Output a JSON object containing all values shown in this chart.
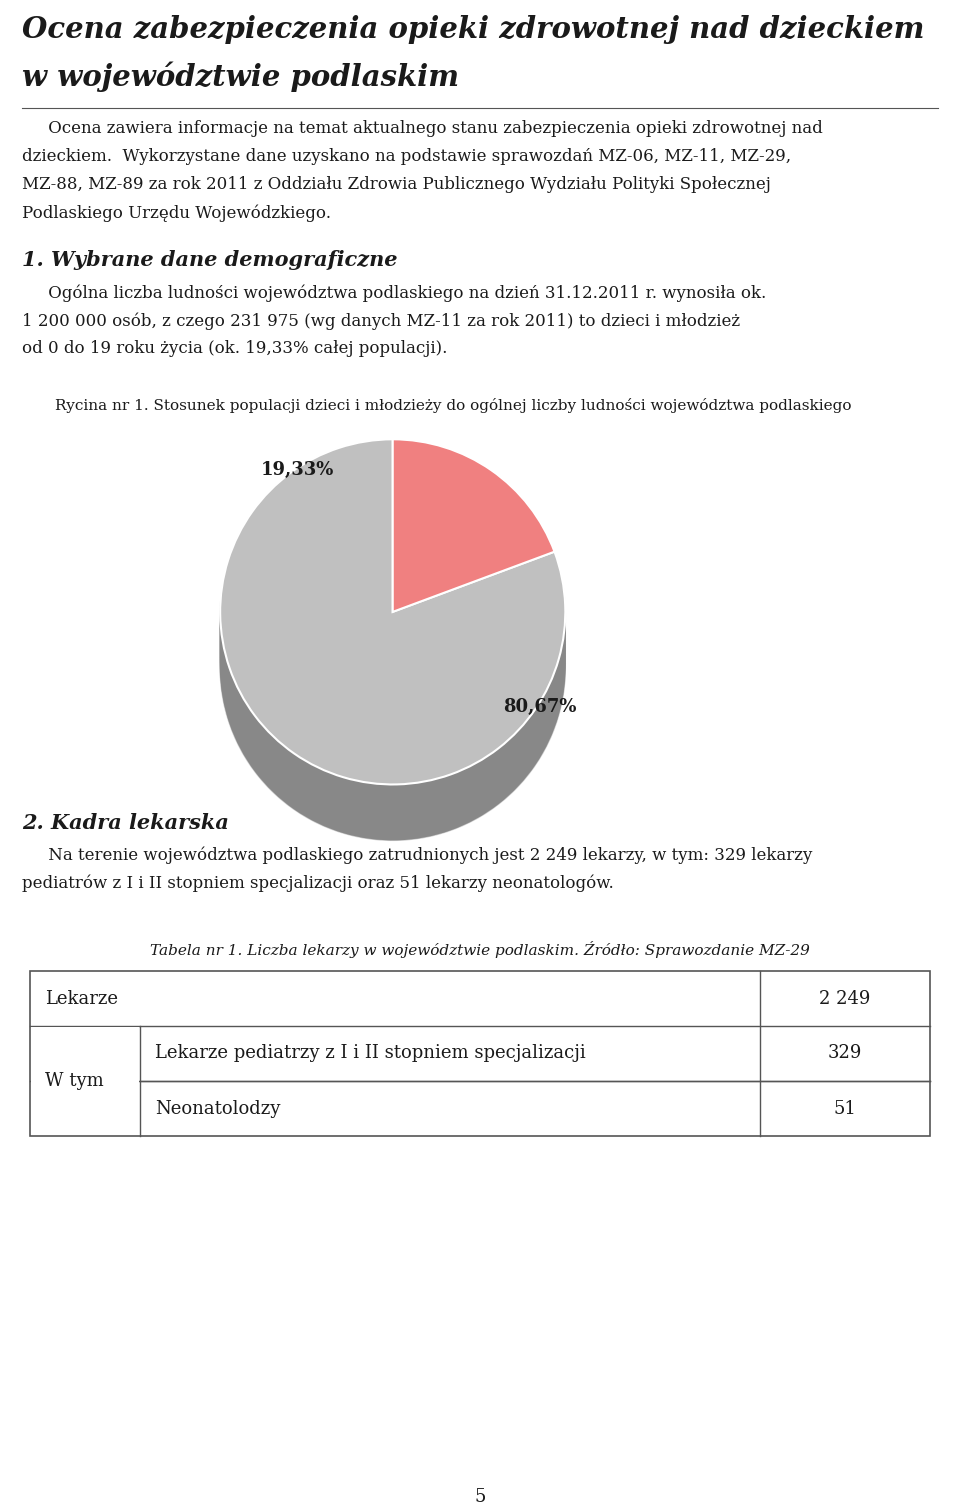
{
  "title_line1": "Ocena zabezpieczenia opieki zdrowotnej nad dzieckiem",
  "title_line2": "w województwie podlaskim",
  "intro_text_lines": [
    "     Ocena zawiera informacje na temat aktualnego stanu zabezpieczenia opieki zdrowotnej nad",
    "dzieckiem.  Wykorzystane dane uzyskano na podstawie sprawozdań MZ-06, MZ-11, MZ-29,",
    "MZ-88, MZ-89 za rok 2011 z Oddziału Zdrowia Publicznego Wydziału Polityki Społecznej",
    "Podlaskiego Urzędu Wojewódzkiego."
  ],
  "section1_heading": "1. Wybrane dane demograficzne",
  "section1_text_lines": [
    "     Ogólna liczba ludności województwa podlaskiego na dzień 31.12.2011 r. wynosiła ok.",
    "1 200 000 osób, z czego 231 975 (wg danych MZ-11 za rok 2011) to dzieci i młodzież",
    "od 0 do 19 roku życia (ok. 19,33% całej populacji)."
  ],
  "figure_caption": "Rycina nr 1. Stosunek populacji dzieci i młodzieży do ogólnej liczby ludności województwa podlaskiego",
  "pie_values": [
    19.33,
    80.67
  ],
  "pie_label_small": "19,33%",
  "pie_label_large": "80,67%",
  "pie_color_small": "#F08080",
  "pie_color_large": "#C0C0C0",
  "pie_shadow_color": "#A0A0A0",
  "pie_dark_color": "#8B2525",
  "section2_heading": "2. Kadra lekarska",
  "section2_text_lines": [
    "     Na terenie województwa podlaskiego zatrudnionych jest 2 249 lekarzy, w tym: 329 lekarzy",
    "pediatrów z I i II stopniem specjalizacji oraz 51 lekarzy neonatologów."
  ],
  "table_caption": "Tabela nr 1. Liczba lekarzy w województwie podlaskim. Źródło: Sprawozdanie MZ-29",
  "table_row1_c1": "Lekarze",
  "table_row1_c3": "2 249",
  "table_row2_c1": "W tym",
  "table_row2_c2": "Lekarze pediatrzy z I i II stopniem specjalizacji",
  "table_row2_c3": "329",
  "table_row3_c2": "Neonatolodzy",
  "table_row3_c3": "51",
  "page_number": "5",
  "bg_color": "#FFFFFF",
  "text_color": "#1A1A1A",
  "line_color": "#555555"
}
